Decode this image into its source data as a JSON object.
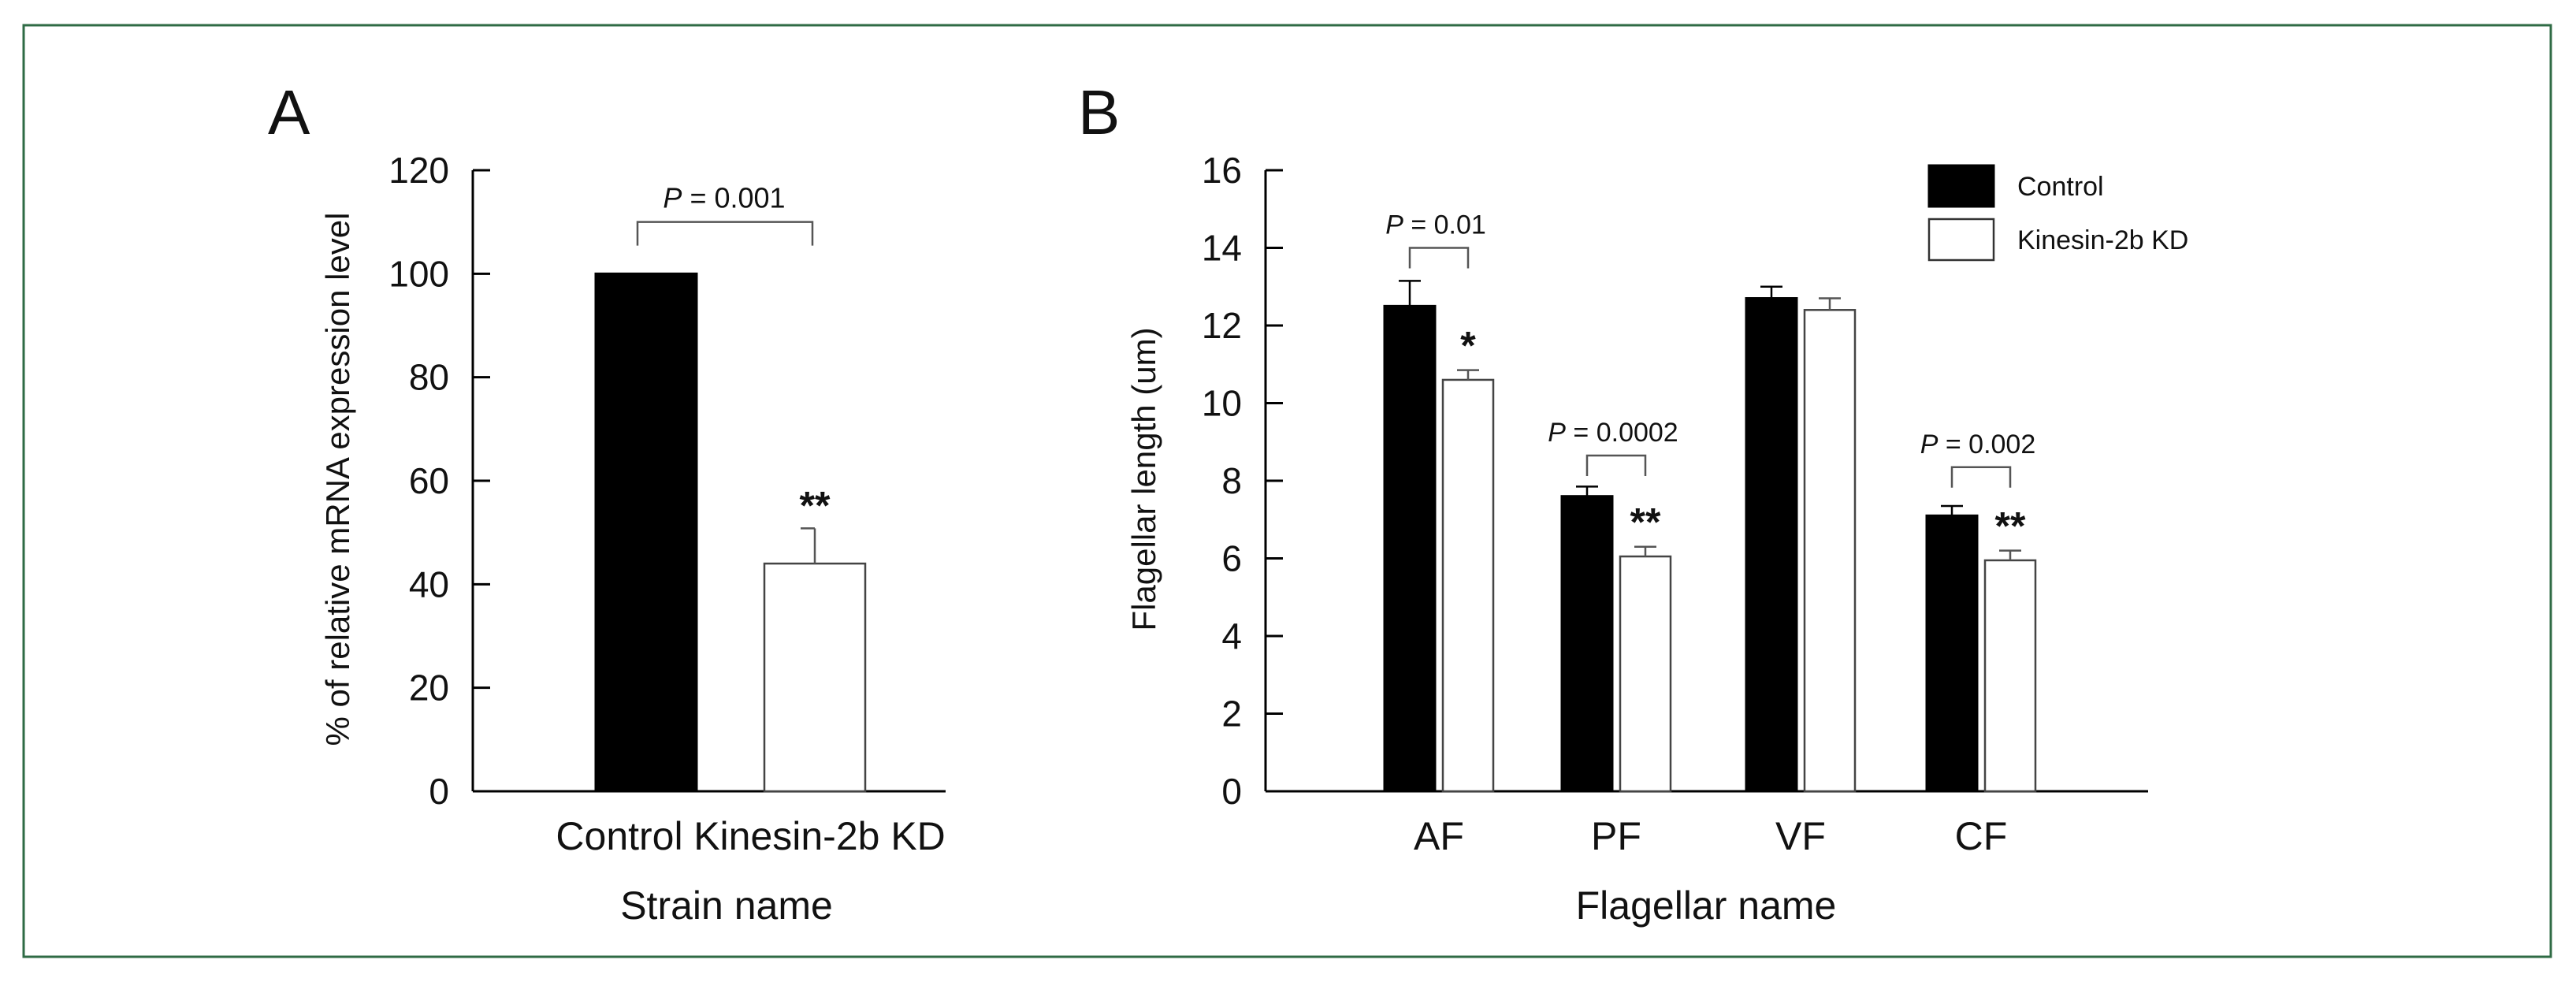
{
  "colors": {
    "frame": "#2f6b45",
    "control": "#000000",
    "kd": "#ffffff",
    "ink": "#111111"
  },
  "chart_data": [
    {
      "panel": "A",
      "type": "bar",
      "xlabel": "Strain name",
      "ylabel": "% of relative mRNA expression level",
      "ylim": [
        0,
        120
      ],
      "yticks": [
        "0",
        "20",
        "40",
        "60",
        "80",
        "100",
        "120"
      ],
      "categories": [
        "Control",
        "Kinesin-2b KD"
      ],
      "values": [
        100,
        44
      ],
      "errors": [
        0,
        6.8
      ],
      "stars": [
        "",
        "**"
      ],
      "comparison": {
        "p_label": "P",
        "p_text": " = 0.001",
        "bracket_top": 110
      }
    },
    {
      "panel": "B",
      "type": "bar",
      "xlabel": "Flagellar name",
      "ylabel": "Flagellar length (um)",
      "ylim": [
        0,
        16
      ],
      "yticks": [
        "0",
        "2",
        "4",
        "6",
        "8",
        "10",
        "12",
        "14",
        "16"
      ],
      "categories": [
        "AF",
        "PF",
        "VF",
        "CF"
      ],
      "series": [
        {
          "name": "Control",
          "values": [
            12.5,
            7.6,
            12.7,
            7.1
          ],
          "errors": [
            0.65,
            0.25,
            0.3,
            0.25
          ]
        },
        {
          "name": "Kinesin-2b KD",
          "values": [
            10.6,
            6.05,
            12.4,
            5.95
          ],
          "errors": [
            0.25,
            0.25,
            0.3,
            0.25
          ]
        }
      ],
      "legend": [
        "Control",
        "Kinesin-2b KD"
      ],
      "comparisons": [
        {
          "category": "AF",
          "p_label": "P",
          "p_text": " = 0.01",
          "star": "*",
          "bracket_top": 14.0
        },
        {
          "category": "PF",
          "p_label": "P",
          "p_text": " = 0.0002",
          "star": "**",
          "bracket_top": 8.65
        },
        {
          "category": "CF",
          "p_label": "P",
          "p_text": " = 0.002",
          "star": "**",
          "bracket_top": 8.35
        }
      ]
    }
  ]
}
